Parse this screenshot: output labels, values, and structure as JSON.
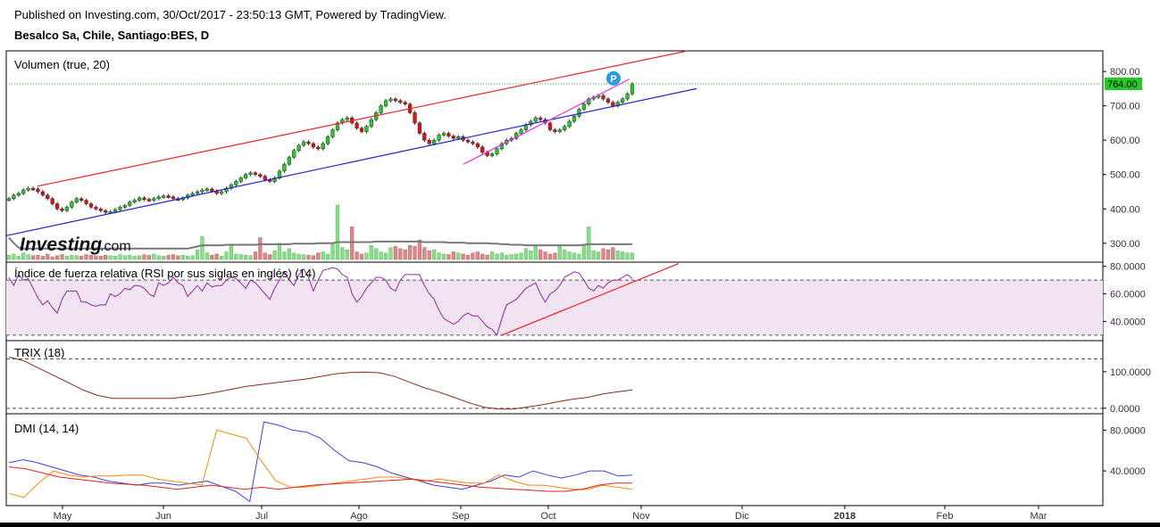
{
  "header": {
    "published": "Published on Investing.com, 30/Oct/2017 - 23:50:13 GMT, Powered by TradingView.",
    "symbol": "Besalco Sa, Chile, Santiago:BES, D"
  },
  "colors": {
    "up": "#22cc22",
    "down": "#dd1111",
    "volume_up": "#88dd88",
    "volume_down": "#dd8888",
    "rsi_line": "#8a2b9a",
    "rsi_band": "#f1e3f1",
    "trix_line": "#8b2a1a",
    "dmi_plus": "#3344dd",
    "dmi_minus": "#ff8800",
    "adx": "#dd2222",
    "price_line": "#22aa22"
  },
  "chart_data": {
    "type": "candlestick",
    "title": "Besalco Sa, Chile, Santiago:BES, D",
    "last_price_label": "764.00",
    "marker_label": "P",
    "watermark": "Investing.com",
    "x_ticks": [
      "May",
      "Jun",
      "Jul",
      "Ago",
      "Sep",
      "Oct",
      "Nov",
      "Dic",
      "2018",
      "Feb",
      "Mar"
    ],
    "price": {
      "ylim": [
        245,
        860
      ],
      "y_ticks": [
        "800.00",
        "700.00",
        "600.00",
        "500.00",
        "400.00",
        "300.00"
      ],
      "closes": [
        430,
        440,
        445,
        455,
        460,
        458,
        450,
        440,
        430,
        415,
        400,
        395,
        405,
        420,
        430,
        425,
        415,
        405,
        400,
        395,
        390,
        392,
        398,
        405,
        410,
        420,
        425,
        432,
        428,
        425,
        430,
        435,
        438,
        435,
        430,
        428,
        432,
        440,
        445,
        450,
        455,
        458,
        452,
        445,
        450,
        460,
        470,
        480,
        490,
        500,
        505,
        500,
        495,
        485,
        480,
        490,
        510,
        530,
        550,
        570,
        585,
        595,
        590,
        580,
        575,
        590,
        610,
        630,
        650,
        660,
        665,
        650,
        635,
        625,
        640,
        660,
        680,
        700,
        715,
        720,
        715,
        710,
        705,
        680,
        650,
        620,
        600,
        590,
        600,
        615,
        620,
        612,
        605,
        610,
        600,
        595,
        590,
        580,
        565,
        555,
        560,
        575,
        590,
        600,
        605,
        620,
        630,
        645,
        655,
        665,
        660,
        650,
        630,
        625,
        630,
        640,
        655,
        670,
        690,
        705,
        720,
        725,
        730,
        720,
        710,
        700,
        710,
        720,
        735,
        764
      ],
      "volume": {
        "ylim": [
          0,
          100
        ],
        "values": [
          8,
          10,
          6,
          12,
          9,
          7,
          8,
          6,
          10,
          5,
          7,
          9,
          6,
          8,
          7,
          6,
          9,
          8,
          7,
          6,
          8,
          7,
          6,
          9,
          7,
          8,
          6,
          7,
          9,
          8,
          10,
          7,
          6,
          8,
          9,
          7,
          8,
          6,
          7,
          18,
          42,
          12,
          8,
          10,
          6,
          14,
          28,
          10,
          9,
          8,
          7,
          14,
          40,
          12,
          9,
          16,
          30,
          14,
          20,
          12,
          10,
          9,
          8,
          7,
          12,
          14,
          10,
          28,
          100,
          22,
          18,
          60,
          14,
          10,
          12,
          26,
          20,
          14,
          12,
          22,
          24,
          20,
          18,
          26,
          24,
          36,
          22,
          16,
          18,
          12,
          10,
          9,
          14,
          12,
          10,
          8,
          12,
          14,
          10,
          8,
          14,
          10,
          12,
          8,
          9,
          10,
          12,
          20,
          16,
          24,
          18,
          14,
          10,
          12,
          26,
          18,
          14,
          12,
          10,
          28,
          60,
          16,
          14,
          20,
          18,
          22,
          16,
          14,
          12,
          12
        ],
        "ma_line": [
          40,
          30,
          22,
          20,
          20,
          20,
          20,
          20,
          20,
          20,
          20,
          20,
          20,
          20,
          20,
          20,
          20,
          20,
          20,
          20,
          20,
          20,
          20,
          20,
          20,
          20,
          20,
          20,
          20,
          20,
          20,
          20,
          20,
          20,
          20,
          20,
          20,
          20,
          22,
          24,
          26,
          26,
          26,
          26,
          26,
          27,
          27,
          27,
          27,
          27,
          27,
          27,
          28,
          28,
          28,
          28,
          28,
          28,
          28,
          29,
          29,
          29,
          29,
          29,
          30,
          30,
          30,
          30,
          32,
          32,
          32,
          32,
          32,
          32,
          32,
          32,
          33,
          33,
          33,
          33,
          33,
          33,
          33,
          33,
          33,
          33,
          32,
          32,
          32,
          32,
          32,
          31,
          31,
          31,
          31,
          30,
          30,
          30,
          30,
          30,
          29,
          29,
          28,
          28,
          27,
          27,
          27,
          26,
          26,
          26,
          26,
          26,
          26,
          26,
          26,
          26,
          26,
          26,
          26,
          27,
          28,
          28,
          28,
          28,
          28,
          28,
          28,
          28,
          28,
          28
        ]
      }
    },
    "rsi": {
      "label": "Índice de fuerza relativa (RSI por sus siglas en inglés) (14)",
      "ylim": [
        26,
        83
      ],
      "y_ticks": [
        "80.0000",
        "60.0000",
        "40.0000"
      ],
      "bands": [
        70,
        30
      ],
      "values": [
        72,
        66,
        74,
        70,
        71,
        64,
        57,
        52,
        55,
        50,
        46,
        56,
        62,
        62,
        62,
        54,
        54,
        52,
        51,
        52,
        52,
        60,
        58,
        60,
        64,
        63,
        66,
        66,
        64,
        60,
        58,
        68,
        66,
        68,
        72,
        68,
        66,
        58,
        62,
        66,
        62,
        68,
        65,
        66,
        66,
        70,
        72,
        71,
        68,
        64,
        70,
        68,
        64,
        60,
        56,
        64,
        70,
        76,
        70,
        66,
        74,
        78,
        72,
        62,
        70,
        77,
        78,
        79,
        78,
        74,
        72,
        60,
        54,
        58,
        64,
        68,
        72,
        72,
        70,
        64,
        62,
        70,
        74,
        74,
        74,
        74,
        66,
        60,
        56,
        48,
        42,
        40,
        38,
        40,
        44,
        46,
        44,
        44,
        40,
        36,
        34,
        30,
        42,
        52,
        54,
        56,
        60,
        64,
        66,
        68,
        60,
        54,
        60,
        62,
        66,
        72,
        74,
        76,
        75,
        70,
        64,
        62,
        66,
        64,
        68,
        70,
        70,
        72,
        74,
        71
      ]
    },
    "trix": {
      "label": "TRIX (18)",
      "ylim": [
        -15,
        185
      ],
      "y_ticks": [
        "100.0000",
        "0.0000"
      ],
      "reference_lines": [
        135,
        0
      ],
      "values": [
        140,
        130,
        110,
        90,
        70,
        50,
        35,
        27,
        27,
        27,
        27,
        27,
        32,
        37,
        44,
        52,
        60,
        65,
        70,
        75,
        80,
        87,
        94,
        98,
        99,
        97,
        87,
        71,
        56,
        44,
        30,
        15,
        3,
        -2,
        -2,
        4,
        10,
        18,
        25,
        30,
        39,
        45,
        50
      ]
    },
    "dmi": {
      "label": "DMI (14, 14)",
      "ylim": [
        6,
        96
      ],
      "y_ticks": [
        "80.0000",
        "40.0000"
      ],
      "series": [
        {
          "key": "plus",
          "values": [
            48,
            51,
            48,
            44,
            40,
            36,
            34,
            30,
            28,
            26,
            28,
            28,
            26,
            28,
            30,
            25,
            20,
            10,
            88,
            85,
            80,
            78,
            72,
            60,
            50,
            48,
            44,
            38,
            34,
            30,
            26,
            24,
            22,
            26,
            30,
            36,
            34,
            40,
            36,
            33,
            36,
            40,
            40,
            35,
            36
          ]
        },
        {
          "key": "minus",
          "values": [
            18,
            14,
            28,
            40,
            36,
            34,
            35,
            35,
            36,
            36,
            32,
            30,
            28,
            26,
            80,
            76,
            72,
            50,
            30,
            24,
            24,
            26,
            28,
            30,
            32,
            34,
            34,
            32,
            30,
            32,
            30,
            28,
            28,
            36,
            30,
            26,
            26,
            24,
            22,
            22,
            26,
            24,
            22
          ]
        },
        {
          "key": "adx",
          "values": [
            44,
            42,
            38,
            34,
            32,
            30,
            28,
            27,
            26,
            24,
            22,
            24,
            26,
            24,
            22,
            24,
            22,
            24,
            26,
            27,
            28,
            29,
            30,
            31,
            32,
            30,
            28,
            26,
            24,
            23,
            22,
            21,
            20,
            20,
            22,
            26,
            28,
            28
          ]
        }
      ]
    }
  }
}
